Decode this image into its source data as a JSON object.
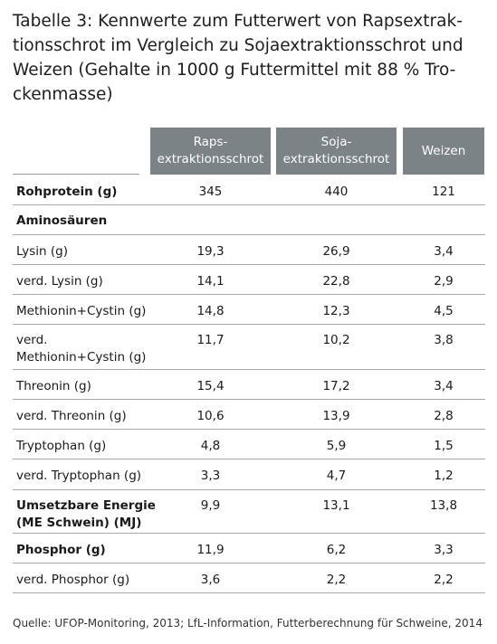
{
  "title": "Tabelle 3: Kennwerte zum Futterwert von Rapsextrak-tionsschrot im Vergleich zu Sojaextraktionsschrot und Weizen (Gehalte in 1000 g Futtermittel mit 88 % Tro-ckenmasse)",
  "columns": [
    "Raps-\nextraktionsschrot",
    "Soja-\nextraktionsschrot",
    "Weizen"
  ],
  "rows": [
    {
      "label": "Rohprotein (g)",
      "bold": true,
      "values": [
        "345",
        "440",
        "121"
      ]
    },
    {
      "label": "Aminosäuren",
      "bold": true,
      "values": [
        "",
        "",
        ""
      ]
    },
    {
      "label": "Lysin (g)",
      "bold": false,
      "values": [
        "19,3",
        "26,9",
        "3,4"
      ]
    },
    {
      "label": "verd. Lysin (g)",
      "bold": false,
      "values": [
        "14,1",
        "22,8",
        "2,9"
      ]
    },
    {
      "label": "Methionin+Cystin (g)",
      "bold": false,
      "values": [
        "14,8",
        "12,3",
        "4,5"
      ]
    },
    {
      "label": "verd.\nMethionin+Cystin (g)",
      "bold": false,
      "values": [
        "11,7",
        "10,2",
        "3,8"
      ]
    },
    {
      "label": "Threonin (g)",
      "bold": false,
      "values": [
        "15,4",
        "17,2",
        "3,4"
      ]
    },
    {
      "label": "verd. Threonin (g)",
      "bold": false,
      "values": [
        "10,6",
        "13,9",
        "2,8"
      ]
    },
    {
      "label": "Tryptophan (g)",
      "bold": false,
      "values": [
        "4,8",
        "5,9",
        "1,5"
      ]
    },
    {
      "label": "verd. Tryptophan (g)",
      "bold": false,
      "values": [
        "3,3",
        "4,7",
        "1,2"
      ]
    },
    {
      "label": "Umsetzbare Energie\n(ME Schwein) (MJ)",
      "bold": true,
      "values": [
        "9,9",
        "13,1",
        "13,8"
      ]
    },
    {
      "label": "Phosphor (g)",
      "bold": true,
      "values": [
        "11,9",
        "6,2",
        "3,3"
      ]
    },
    {
      "label": "verd. Phosphor (g)",
      "bold": false,
      "values": [
        "3,6",
        "2,2",
        "2,2"
      ]
    }
  ],
  "source": "Quelle: UFOP-Monitoring, 2013; LfL-Information, Futterberechnung für Schweine, 2014"
}
